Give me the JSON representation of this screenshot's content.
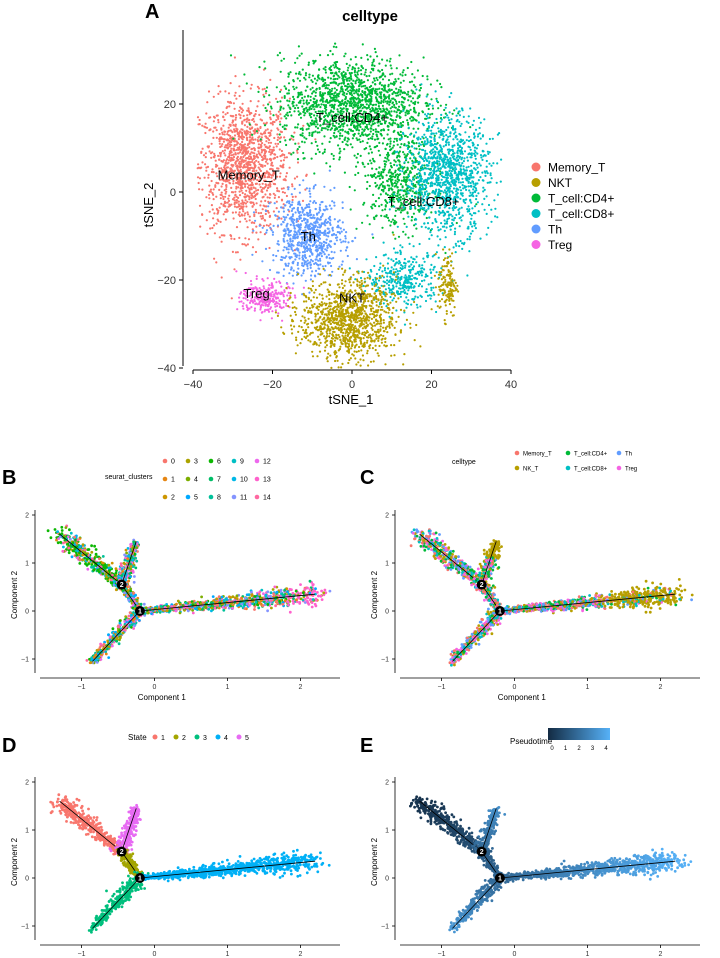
{
  "panel_A": {
    "letter": "A",
    "title": "celltype",
    "xlabel": "tSNE_1",
    "ylabel": "tSNE_2",
    "xticks": [
      "−40",
      "−20",
      "0",
      "20",
      "40"
    ],
    "yticks": [
      "20",
      "0",
      "−20",
      "−40"
    ],
    "legend": [
      {
        "label": "Memory_T",
        "color": "#F8766D"
      },
      {
        "label": "NKT",
        "color": "#B79F00"
      },
      {
        "label": "T_cell:CD4+",
        "color": "#00BA38"
      },
      {
        "label": "T_cell:CD8+",
        "color": "#00BFC4"
      },
      {
        "label": "Th",
        "color": "#619CFF"
      },
      {
        "label": "Treg",
        "color": "#F564E3"
      }
    ],
    "cluster_labels": [
      "Memory_T",
      "T_cell:CD4+",
      "T_cell:CD8+",
      "Th",
      "Treg",
      "NKT"
    ]
  },
  "panel_B": {
    "letter": "B",
    "legend_title": "seurat_clusters",
    "legend": [
      {
        "label": "0",
        "color": "#F8766D"
      },
      {
        "label": "3",
        "color": "#ABA300"
      },
      {
        "label": "6",
        "color": "#0CB702"
      },
      {
        "label": "9",
        "color": "#00BFC4"
      },
      {
        "label": "12",
        "color": "#ED68ED"
      },
      {
        "label": "1",
        "color": "#E68613"
      },
      {
        "label": "4",
        "color": "#7CAE00"
      },
      {
        "label": "7",
        "color": "#00BE67"
      },
      {
        "label": "10",
        "color": "#00B8E7"
      },
      {
        "label": "13",
        "color": "#FF61CC"
      },
      {
        "label": "2",
        "color": "#CD9600"
      },
      {
        "label": "5",
        "color": "#00A9FF"
      },
      {
        "label": "8",
        "color": "#00C19A"
      },
      {
        "label": "11",
        "color": "#8494FF"
      },
      {
        "label": "14",
        "color": "#FF68A1"
      }
    ]
  },
  "panel_C": {
    "letter": "C",
    "legend_title": "celltype",
    "legend": [
      {
        "label": "Memory_T",
        "color": "#F8766D"
      },
      {
        "label": "T_cell:CD4+",
        "color": "#00BA38"
      },
      {
        "label": "Th",
        "color": "#619CFF"
      },
      {
        "label": "NK_T",
        "color": "#B79F00"
      },
      {
        "label": "T_cell:CD8+",
        "color": "#00BFC4"
      },
      {
        "label": "Treg",
        "color": "#F564E3"
      }
    ]
  },
  "panel_D": {
    "letter": "D",
    "legend_title": "State",
    "legend": [
      {
        "label": "1",
        "color": "#F8766D"
      },
      {
        "label": "2",
        "color": "#A3A500"
      },
      {
        "label": "3",
        "color": "#00BF7D"
      },
      {
        "label": "4",
        "color": "#00B0F6"
      },
      {
        "label": "5",
        "color": "#E76BF3"
      }
    ]
  },
  "panel_E": {
    "letter": "E",
    "legend_title": "Pseudotime",
    "colorbar_ticks": [
      "0",
      "1",
      "2",
      "3",
      "4"
    ]
  },
  "trajectory_axes": {
    "xlabel": "Component 1",
    "ylabel": "Component 2",
    "xticks": [
      "−1",
      "0",
      "1",
      "2"
    ],
    "yticks": [
      "2",
      "1",
      "0",
      "−1"
    ],
    "node_labels": [
      "1",
      "2"
    ]
  },
  "chart_data": [
    {
      "type": "scatter",
      "panel": "A",
      "title": "celltype",
      "xlabel": "tSNE_1",
      "ylabel": "tSNE_2",
      "xlim": [
        -40,
        40
      ],
      "ylim": [
        -42,
        36
      ],
      "series": [
        {
          "name": "Memory_T",
          "center": [
            -28,
            5
          ]
        },
        {
          "name": "T_cell:CD4+",
          "center": [
            0,
            18
          ]
        },
        {
          "name": "T_cell:CD8+",
          "center": [
            22,
            -2
          ]
        },
        {
          "name": "Th",
          "center": [
            -12,
            -10
          ]
        },
        {
          "name": "Treg",
          "center": [
            -23,
            -24
          ]
        },
        {
          "name": "NKT",
          "center": [
            0,
            -30
          ]
        }
      ]
    },
    {
      "type": "scatter",
      "panel": "B",
      "xlabel": "Component 1",
      "ylabel": "Component 2",
      "xlim": [
        -1.5,
        2.5
      ],
      "ylim": [
        -1.25,
        2
      ]
    },
    {
      "type": "scatter",
      "panel": "C",
      "xlabel": "Component 1",
      "ylabel": "Component 2",
      "xlim": [
        -1.5,
        2.5
      ],
      "ylim": [
        -1.25,
        2
      ]
    },
    {
      "type": "scatter",
      "panel": "D",
      "xlabel": "Component 1",
      "ylabel": "Component 2",
      "xlim": [
        -1.5,
        2.5
      ],
      "ylim": [
        -1.25,
        2
      ]
    },
    {
      "type": "scatter",
      "panel": "E",
      "xlabel": "Component 1",
      "ylabel": "Component 2",
      "xlim": [
        -1.5,
        2.5
      ],
      "ylim": [
        -1.25,
        2
      ]
    }
  ]
}
